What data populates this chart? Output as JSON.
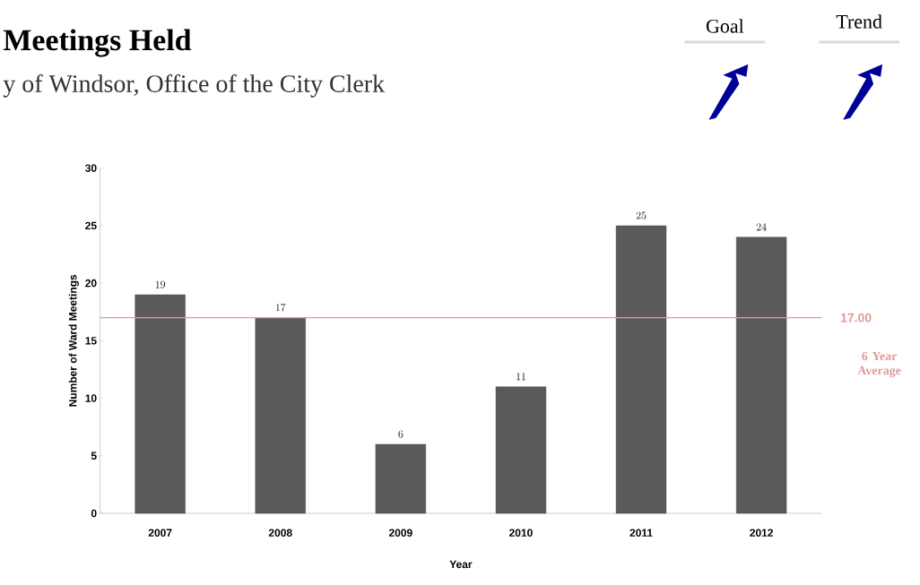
{
  "chart_data": {
    "type": "bar",
    "title": "Meetings Held",
    "subtitle": "y of Windsor, Office of the City Clerk",
    "xlabel": "Year",
    "ylabel": "Number of Ward Meetings",
    "categories": [
      "2007",
      "2008",
      "2009",
      "2010",
      "2011",
      "2012"
    ],
    "values": [
      19,
      17,
      6,
      11,
      25,
      24
    ],
    "color": "#5a5a5a",
    "ylim": [
      0,
      30
    ],
    "yticks": [
      0,
      5,
      10,
      15,
      20,
      25,
      30
    ],
    "data_labels": true,
    "grid": false,
    "ref_lines": [
      {
        "axis": "y",
        "value": 17,
        "label": "17.00",
        "color": "#e09a9a"
      }
    ],
    "annotations": [
      "6 Year Average",
      "Goal",
      "Trend"
    ]
  }
}
